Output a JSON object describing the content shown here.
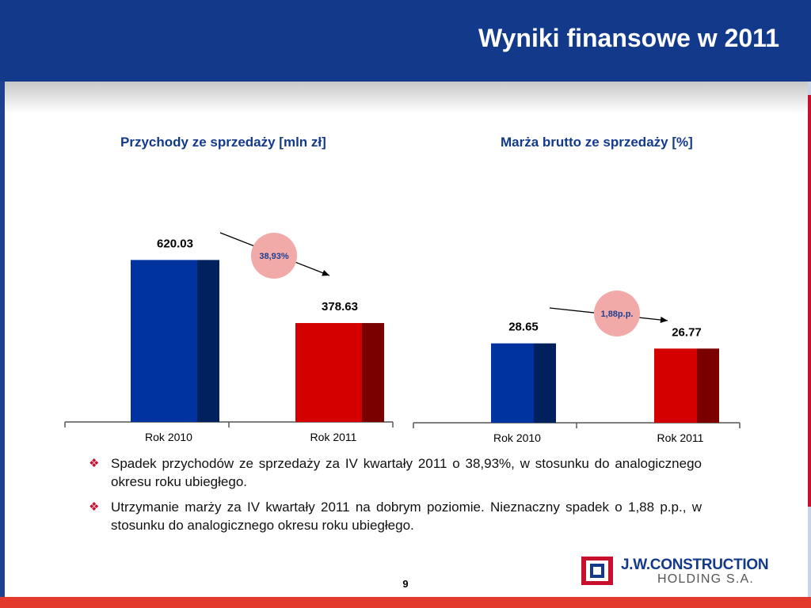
{
  "header": {
    "title": "Wyniki finansowe w 2011"
  },
  "chart_data": [
    {
      "type": "bar",
      "title": "Przychody ze sprzedaży [mln zł]",
      "categories": [
        "Rok 2010",
        "Rok 2011"
      ],
      "values": [
        620.03,
        378.63
      ],
      "value_labels": [
        "620.03",
        "378.63"
      ],
      "colors": [
        "#0033a0",
        "#d40000"
      ],
      "side_colors": [
        "#00215e",
        "#7a0000"
      ],
      "ylim": [
        0,
        700
      ],
      "annotation": {
        "text": "38,93%",
        "bubble_color": "#f2aaa9",
        "text_color": "#1f3f8f"
      }
    },
    {
      "type": "bar",
      "title": "Marża brutto ze sprzedaży [%]",
      "categories": [
        "Rok 2010",
        "Rok 2011"
      ],
      "values": [
        28.65,
        26.77
      ],
      "value_labels": [
        "28.65",
        "26.77"
      ],
      "colors": [
        "#0033a0",
        "#d40000"
      ],
      "side_colors": [
        "#00215e",
        "#7a0000"
      ],
      "ylim": [
        0,
        120
      ],
      "annotation": {
        "text": "1,88p.p.",
        "bubble_color": "#f2aaa9",
        "text_color": "#1f3f8f"
      }
    }
  ],
  "bullets": [
    "Spadek przychodów ze sprzedaży za IV kwartały 2011 o 38,93%, w stosunku do analogicznego okresu roku ubiegłego.",
    "Utrzymanie marży za IV kwartały 2011 na dobrym poziomie. Nieznaczny spadek o 1,88 p.p., w stosunku do analogicznego okresu roku ubiegłego."
  ],
  "bullet_marker": "❖",
  "footer": {
    "page_number": "9"
  },
  "logo": {
    "name_top": "J.W.CONSTRUCTION",
    "name_bottom": "HOLDING S.A."
  }
}
